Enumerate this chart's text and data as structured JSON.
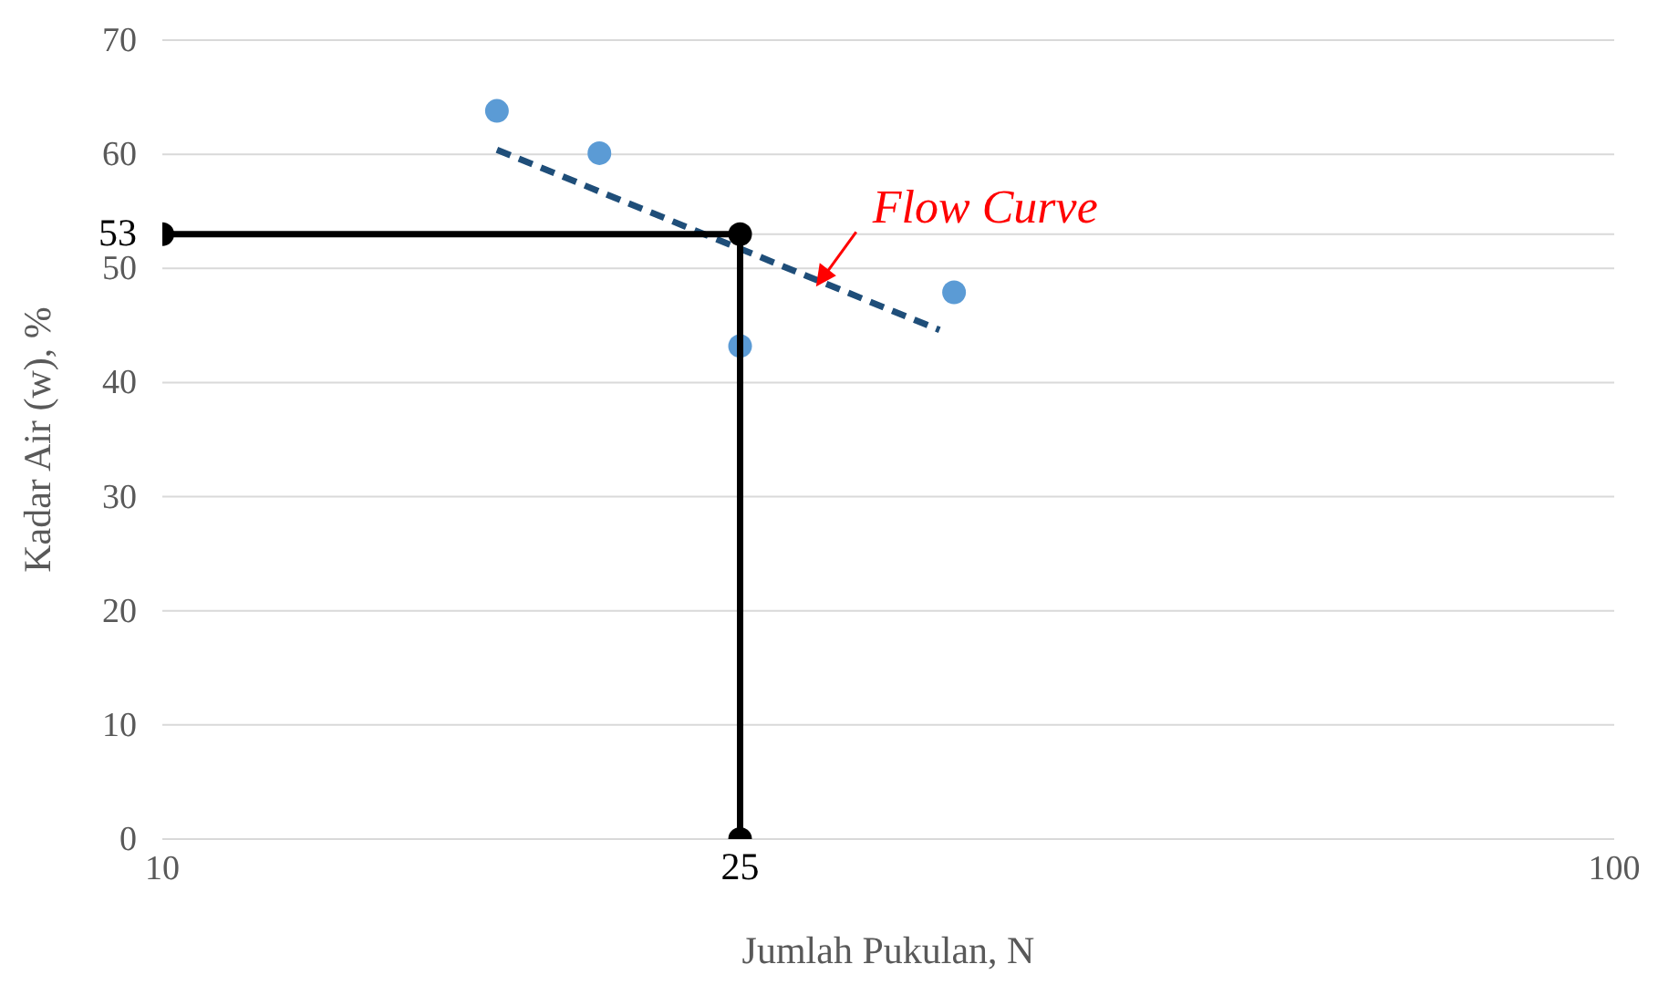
{
  "chart_data": {
    "type": "scatter",
    "xlabel": "Jumlah Pukulan, N",
    "ylabel": "Kadar Air (w), %",
    "log": "x",
    "grid": "y",
    "xlim": [
      10,
      100
    ],
    "xticks": [
      10,
      25,
      100
    ],
    "ylim": [
      0,
      70
    ],
    "yticks": [
      0,
      10,
      20,
      30,
      40,
      50,
      53,
      60,
      70
    ],
    "series": [
      {
        "type": "scatter",
        "color": "#5b9bd5",
        "marker": "circle",
        "x": [
          17,
          20,
          25,
          35.1
        ],
        "values": [
          63.8,
          60.1,
          43.2,
          47.9
        ]
      },
      {
        "type": "line",
        "color": "#1f4e79",
        "line_style": "dashed",
        "marker": "none",
        "x": [
          17,
          34.3
        ],
        "values": [
          60.4,
          44.6
        ]
      },
      {
        "type": "line",
        "color": "#000000",
        "line_style": "solid",
        "marker": "circle",
        "x": [
          10,
          25,
          25
        ],
        "values": [
          53,
          53,
          0
        ]
      }
    ],
    "annotations": [
      {
        "text": "Flow Curve",
        "x": 28.2,
        "y": 48.4
      }
    ]
  }
}
